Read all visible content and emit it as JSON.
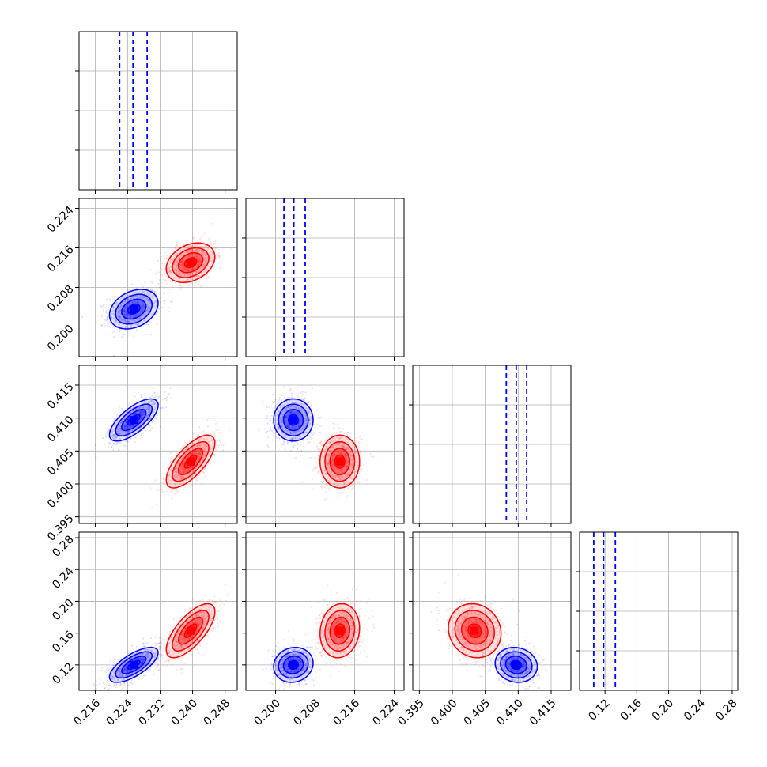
{
  "chart_data": {
    "type": "corner",
    "grid": true,
    "colors": {
      "blue": "#0000ff",
      "red": "#ff0000"
    },
    "series": [
      {
        "color": "#0000ff",
        "mean": [
          0.2255,
          0.2036,
          0.4097,
          0.12
        ],
        "sd": [
          0.003,
          0.002,
          0.0016,
          0.011
        ],
        "quantile_lines": [
          [
            0.222,
            0.2253,
            0.2288
          ],
          [
            0.2017,
            0.2037,
            0.206
          ],
          [
            0.4082,
            0.4097,
            0.4113
          ],
          [
            0.1058,
            0.1182,
            0.133
          ]
        ]
      },
      {
        "color": "#ff0000",
        "mean": [
          0.2395,
          0.213,
          0.4034,
          0.163
        ],
        "sd": [
          0.003,
          0.002,
          0.002,
          0.017
        ]
      }
    ],
    "correlations": [
      {
        "i": 1,
        "j": 0,
        "blue": 0.3,
        "red": 0.3
      },
      {
        "i": 2,
        "j": 0,
        "blue": 0.7,
        "red": 0.7
      },
      {
        "i": 2,
        "j": 1,
        "blue": 0.0,
        "red": 0.0
      },
      {
        "i": 3,
        "j": 0,
        "blue": 0.7,
        "red": 0.7
      },
      {
        "i": 3,
        "j": 1,
        "blue": 0.1,
        "red": 0.1
      },
      {
        "i": 3,
        "j": 2,
        "blue": -0.1,
        "red": -0.1
      }
    ],
    "variables": [
      {
        "range": [
          0.212,
          0.251
        ],
        "ticks": [
          0.216,
          0.224,
          0.232,
          0.24,
          0.248
        ],
        "tick_labels": [
          "0.216",
          "0.224",
          "0.232",
          "0.240",
          "0.248"
        ]
      },
      {
        "range": [
          0.194,
          0.226
        ],
        "ticks": [
          0.2,
          0.208,
          0.216,
          0.224
        ],
        "tick_labels": [
          "0.200",
          "0.208",
          "0.216",
          "0.224"
        ]
      },
      {
        "range": [
          0.394,
          0.418
        ],
        "ticks": [
          0.395,
          0.4,
          0.405,
          0.41,
          0.415
        ],
        "tick_labels": [
          "0.395",
          "0.400",
          "0.405",
          "0.410",
          "0.415"
        ]
      },
      {
        "range": [
          0.088,
          0.287
        ],
        "ticks": [
          0.12,
          0.16,
          0.2,
          0.24,
          0.28
        ],
        "tick_labels": [
          "0.12",
          "0.16",
          "0.20",
          "0.24",
          "0.28"
        ]
      }
    ]
  }
}
